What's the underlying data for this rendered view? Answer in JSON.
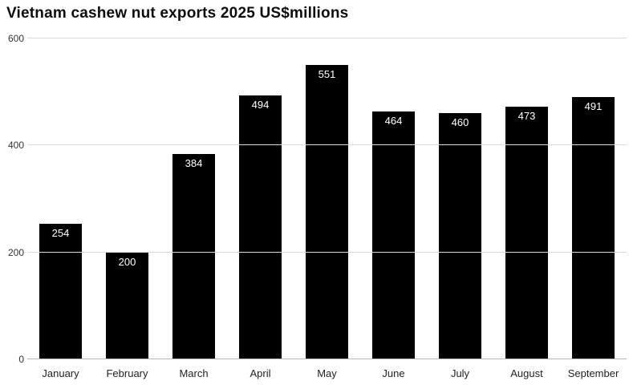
{
  "chart_data": {
    "type": "bar",
    "title": "Vietnam cashew nut exports 2025 US$millions",
    "categories": [
      "January",
      "February",
      "March",
      "April",
      "May",
      "June",
      "July",
      "August",
      "September"
    ],
    "values": [
      254,
      200,
      384,
      494,
      551,
      464,
      460,
      473,
      491
    ],
    "xlabel": "",
    "ylabel": "",
    "ylim": [
      0,
      600
    ],
    "yticks": [
      0,
      200,
      400,
      600
    ],
    "grid": true,
    "legend": "none",
    "bar_color": "#000000",
    "value_label_color": "#ffffff",
    "background_color": "#ffffff"
  }
}
